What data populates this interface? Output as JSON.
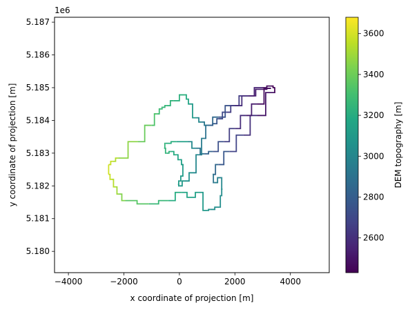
{
  "chart_data": {
    "type": "line",
    "title": "",
    "xlabel": "x coordinate of projection [m]",
    "ylabel": "y coordinate of projection [m]",
    "y_offset_label": "1e6",
    "xlim": [
      -4500,
      5400
    ],
    "ylim": [
      5.17935,
      5.18715
    ],
    "x_ticks": [
      -4000,
      -2000,
      0,
      2000,
      4000
    ],
    "x_tick_labels": [
      "−4000",
      "−2000",
      "0",
      "2000",
      "4000"
    ],
    "y_ticks": [
      5.18,
      5.181,
      5.182,
      5.183,
      5.184,
      5.185,
      5.186,
      5.187
    ],
    "y_tick_labels": [
      "5.180",
      "5.181",
      "5.182",
      "5.183",
      "5.184",
      "5.185",
      "5.186",
      "5.187"
    ],
    "grid": false,
    "colorbar": {
      "label": "DEM topography [m]",
      "colormap": "viridis",
      "range": [
        2430,
        3680
      ],
      "ticks": [
        2600,
        2800,
        3000,
        3200,
        3400,
        3600
      ],
      "tick_labels": [
        "2600",
        "2800",
        "3000",
        "3200",
        "3400",
        "3600"
      ]
    },
    "series": [
      {
        "part": "outer-outline",
        "x": [
          3300,
          3450,
          3420,
          2800,
          2300,
          1800,
          1400,
          1200,
          1250,
          1500,
          1550,
          1500,
          1450,
          1100,
          1000,
          700,
          450,
          100,
          -400,
          -1100,
          -1950,
          -2200,
          -2300,
          -2450,
          -2550,
          -2550,
          -2400,
          -2200,
          -1500,
          -1000,
          -800,
          -650,
          -600,
          -450,
          -200,
          200,
          300,
          350,
          600,
          800,
          1000,
          1400,
          1900,
          2400,
          3000,
          3300
        ],
        "y": [
          5.18505,
          5.185,
          5.18485,
          5.18415,
          5.18355,
          5.18305,
          5.18265,
          5.18235,
          5.1821,
          5.18225,
          5.1819,
          5.1817,
          5.18135,
          5.18128,
          5.18125,
          5.1818,
          5.18165,
          5.1818,
          5.18155,
          5.18145,
          5.18155,
          5.18175,
          5.18197,
          5.1822,
          5.18235,
          5.18265,
          5.18275,
          5.18285,
          5.18335,
          5.18385,
          5.1842,
          5.18435,
          5.1844,
          5.18445,
          5.1846,
          5.18478,
          5.18465,
          5.1845,
          5.18408,
          5.18395,
          5.18385,
          5.1841,
          5.18445,
          5.18475,
          5.185,
          5.18505
        ],
        "z": [
          2440,
          2440,
          2460,
          2560,
          2640,
          2720,
          2820,
          2880,
          2930,
          2990,
          3020,
          3040,
          3030,
          3050,
          3080,
          3120,
          3150,
          3170,
          3230,
          3290,
          3410,
          3480,
          3520,
          3560,
          3600,
          3590,
          3560,
          3510,
          3420,
          3360,
          3300,
          3270,
          3260,
          3250,
          3230,
          3220,
          3180,
          3150,
          3050,
          2960,
          2900,
          2800,
          2700,
          2600,
          2500,
          2440
        ]
      },
      {
        "part": "inner-outline",
        "x": [
          3300,
          2800,
          2400,
          2000,
          1600,
          1200,
          900,
          600,
          300,
          -100,
          -500,
          -550,
          -450,
          -300,
          -100,
          0,
          150,
          100,
          0,
          -50,
          0,
          200,
          500,
          700,
          900,
          1000,
          1100,
          1300,
          1400,
          1700,
          2000,
          2500,
          3000,
          3300
        ],
        "y": [
          5.18498,
          5.1845,
          5.18415,
          5.18375,
          5.18335,
          5.18305,
          5.18298,
          5.18315,
          5.18335,
          5.18335,
          5.1833,
          5.18315,
          5.183,
          5.18305,
          5.18295,
          5.1828,
          5.18265,
          5.1823,
          5.18215,
          5.18205,
          5.182,
          5.18215,
          5.1824,
          5.18295,
          5.18345,
          5.18385,
          5.18385,
          5.1839,
          5.18405,
          5.18425,
          5.18445,
          5.18475,
          5.18495,
          5.18498
        ],
        "z": [
          2440,
          2500,
          2560,
          2620,
          2690,
          2780,
          2860,
          2950,
          3080,
          3180,
          3240,
          3250,
          3240,
          3220,
          3180,
          3150,
          3120,
          3100,
          3110,
          3120,
          3110,
          3080,
          3030,
          2980,
          2920,
          2880,
          2840,
          2780,
          2740,
          2680,
          2620,
          2560,
          2500,
          2440
        ]
      }
    ]
  }
}
